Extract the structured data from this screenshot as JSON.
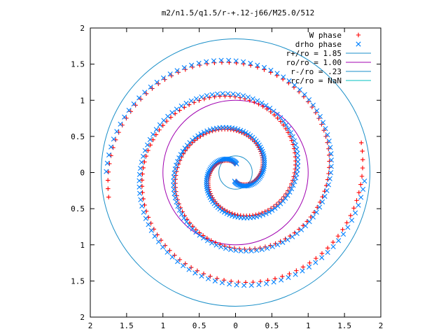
{
  "chart_data": {
    "type": "scatter",
    "title": "m2/n1.5/q1.5/r-+.12-j66/M25.0/512",
    "xlabel": "",
    "ylabel": "",
    "xlim": [
      -2,
      2
    ],
    "ylim": [
      -2,
      2
    ],
    "x_tick_values": [
      -2,
      -1.5,
      -1,
      -0.5,
      0,
      0.5,
      1,
      1.5,
      2
    ],
    "x_tick_labels": [
      "2",
      "1.5",
      "1",
      "0.5",
      "0",
      "0.5",
      "1",
      "1.5",
      "2"
    ],
    "y_tick_values": [
      2,
      1.5,
      1,
      0.5,
      0,
      -0.5,
      -1,
      -1.5,
      -2
    ],
    "y_tick_labels": [
      "2",
      "1.5",
      "1",
      "0.5",
      "0",
      "0.5",
      "1",
      "1.5",
      "2"
    ],
    "grid": false,
    "legend_position": "top-right",
    "colors": {
      "w_phase": "#ff0000",
      "drho_phase": "#0080ff",
      "circle_rplus": "#1a8fc8",
      "circle_ro": "#a000b0",
      "circle_rminus": "#1a8fc8",
      "circle_rc": "#00c0c0"
    },
    "series": [
      {
        "name": "W phase",
        "kind": "points",
        "marker": "plus",
        "spirals": [
          {
            "r0": 0.12,
            "theta0": 1.6,
            "r1": 1.78,
            "theta1": 12.8
          },
          {
            "r0": 0.12,
            "theta0": 4.75,
            "r1": 1.78,
            "theta1": 15.9
          }
        ]
      },
      {
        "name": "drho phase",
        "kind": "points",
        "marker": "cross",
        "spirals": [
          {
            "r0": 0.12,
            "theta0": 1.45,
            "r1": 1.78,
            "theta1": 12.5
          },
          {
            "r0": 0.12,
            "theta0": 4.6,
            "r1": 1.78,
            "theta1": 15.7
          }
        ]
      },
      {
        "name": "r+/ro = 1.85",
        "kind": "circle",
        "radius": 1.85
      },
      {
        "name": "ro/ro = 1.00",
        "kind": "circle",
        "radius": 1.0
      },
      {
        "name": "r-/ro = .23",
        "kind": "circle",
        "radius": 0.23
      },
      {
        "name": "rc/ro = NaN",
        "kind": "circle",
        "radius": null
      }
    ]
  }
}
